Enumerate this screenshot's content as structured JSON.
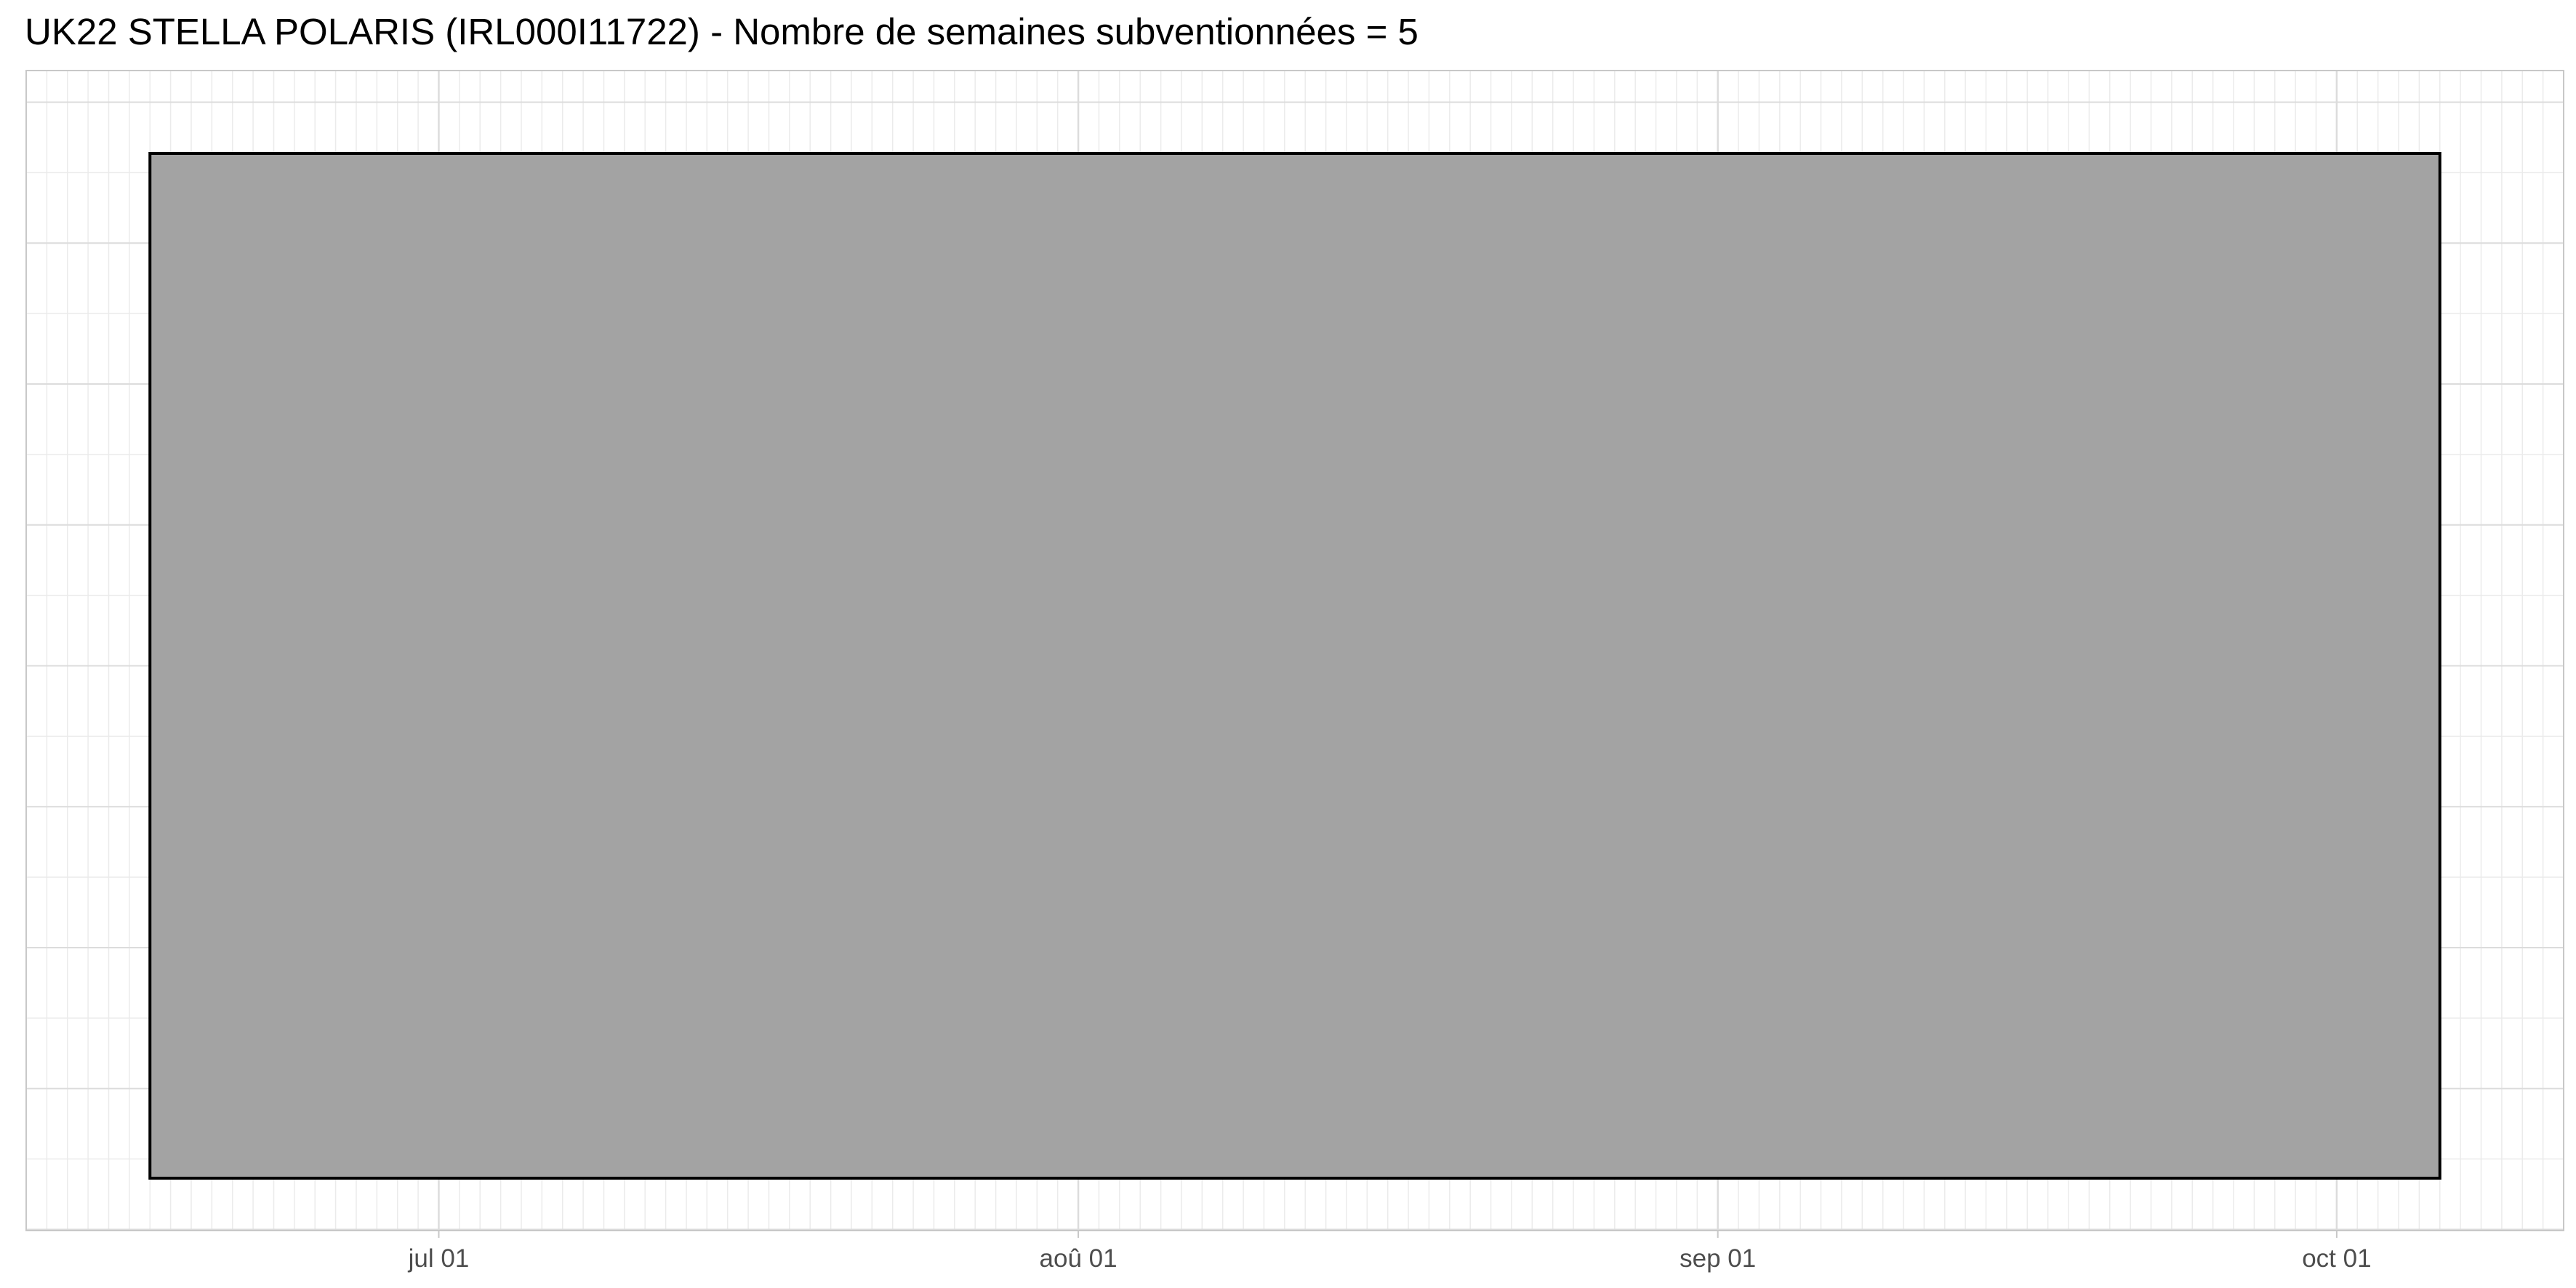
{
  "chart_data": {
    "type": "bar",
    "title": "UK22 STELLA POLARIS (IRL000I11722) - Nombre de semaines subventionnées = 5",
    "xlabel": "",
    "ylabel": "",
    "x_axis": {
      "scale": "date",
      "range": [
        "2022-06-11",
        "2022-10-12"
      ],
      "major_ticks": [
        {
          "date": "2022-07-01",
          "label": "jul 01"
        },
        {
          "date": "2022-08-01",
          "label": "aoû 01"
        },
        {
          "date": "2022-09-01",
          "label": "sep 01"
        },
        {
          "date": "2022-10-01",
          "label": "oct 01"
        }
      ],
      "minor_grid": "daily"
    },
    "y_axis": {
      "tick_labels_shown": false,
      "ylim": [
        0,
        1
      ]
    },
    "grid": true,
    "legend": "none",
    "rects": [
      {
        "start": "2022-06-17",
        "end": "2022-10-06",
        "ymin": 0,
        "ymax": 1,
        "fill": "#a3a3a3",
        "stroke": "#000000"
      }
    ],
    "colors": {
      "panel_border": "#c8c8c8",
      "major_grid": "#dcdcdc",
      "minor_grid": "#ebebeb",
      "tick_label": "#4d4d4d"
    }
  }
}
